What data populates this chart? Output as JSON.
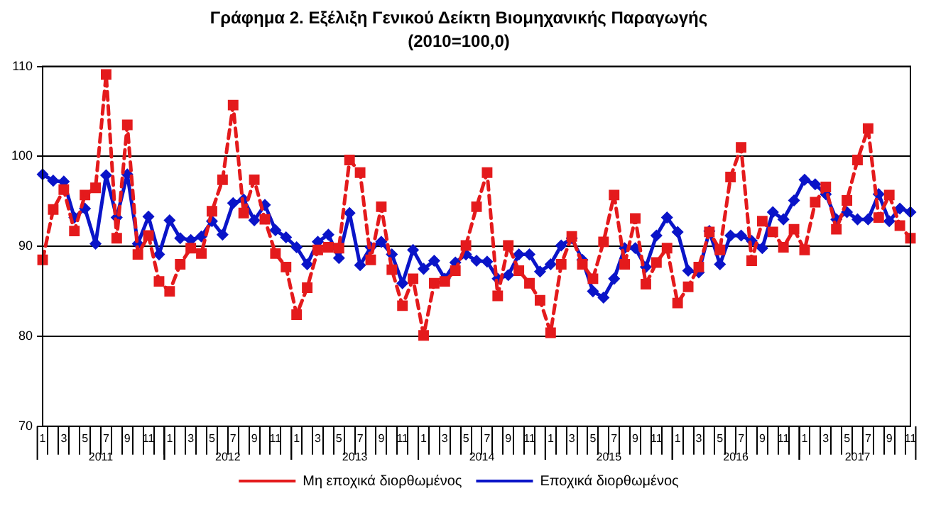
{
  "chart_data": {
    "type": "line",
    "title": "Γράφημα 2. Εξέλιξη Γενικού Δείκτη Βιομηχανικής Παραγωγής",
    "subtitle": "(2010=100,0)",
    "categories": [
      "1",
      null,
      "3",
      null,
      "5",
      null,
      "7",
      null,
      "9",
      null,
      "11",
      null,
      "1",
      null,
      "3",
      null,
      "5",
      null,
      "7",
      null,
      "9",
      null,
      "11",
      null,
      "1",
      null,
      "3",
      null,
      "5",
      null,
      "7",
      null,
      "9",
      null,
      "11",
      null,
      "1",
      null,
      "3",
      null,
      "5",
      null,
      "7",
      null,
      "9",
      null,
      "11",
      null,
      "1",
      null,
      "3",
      null,
      "5",
      null,
      "7",
      null,
      "9",
      null,
      "11",
      null,
      "1",
      null,
      "3",
      null,
      "5",
      null,
      "7",
      null,
      "9",
      null,
      "11",
      null,
      "1",
      null,
      "3",
      null,
      "5",
      null,
      "7",
      null,
      "9",
      null,
      "11"
    ],
    "annotations": [
      "2011",
      "2012",
      "2013",
      "2014",
      "2015",
      "2016",
      "2017"
    ],
    "series": [
      {
        "name": "Μη εποχικά διορθωμένος",
        "color": "#e41a1c",
        "marker": "square",
        "line_style": "dashed",
        "values": [
          88.5,
          94.1,
          96.3,
          91.7,
          95.7,
          96.5,
          109.1,
          90.9,
          103.5,
          89.1,
          91.2,
          86.1,
          85.0,
          88.0,
          89.8,
          89.2,
          93.9,
          97.4,
          105.7,
          93.7,
          97.4,
          93.0,
          89.2,
          87.7,
          82.4,
          85.4,
          89.6,
          89.9,
          89.8,
          99.6,
          98.2,
          88.5,
          94.4,
          87.4,
          83.4,
          86.4,
          80.1,
          85.9,
          86.1,
          87.3,
          90.1,
          94.4,
          98.2,
          84.5,
          90.1,
          87.3,
          85.9,
          84.0,
          80.4,
          88.0,
          91.1,
          88.0,
          86.4,
          90.5,
          95.7,
          88.0,
          93.1,
          85.8,
          88.2,
          89.8,
          83.7,
          85.5,
          87.7,
          91.6,
          89.6,
          97.7,
          101.0,
          88.4,
          92.8,
          91.6,
          89.9,
          91.9,
          89.6,
          94.9,
          96.6,
          91.9,
          95.1,
          99.6,
          103.1,
          93.2,
          95.7,
          92.3,
          90.9
        ]
      },
      {
        "name": "Εποχικά διορθωμένος",
        "color": "#0a14c8",
        "marker": "diamond",
        "line_style": "solid",
        "values": [
          98.0,
          97.3,
          97.2,
          93.2,
          94.2,
          90.3,
          97.9,
          93.2,
          98.0,
          90.3,
          93.3,
          89.1,
          92.9,
          90.9,
          90.7,
          91.1,
          92.8,
          91.3,
          94.8,
          95.2,
          92.9,
          94.6,
          91.8,
          91.0,
          89.9,
          88.0,
          90.5,
          91.3,
          88.7,
          93.7,
          87.9,
          89.9,
          90.5,
          89.1,
          85.9,
          89.6,
          87.5,
          88.4,
          86.4,
          88.2,
          89.1,
          88.4,
          88.3,
          86.4,
          86.8,
          89.1,
          89.1,
          87.2,
          88.0,
          90.1,
          90.9,
          88.5,
          85.0,
          84.3,
          86.4,
          89.8,
          89.8,
          87.7,
          91.2,
          93.2,
          91.6,
          87.3,
          87.1,
          91.7,
          88.0,
          91.2,
          91.2,
          90.6,
          89.8,
          93.8,
          93.0,
          95.1,
          97.4,
          96.9,
          95.8,
          93.0,
          93.8,
          93.0,
          93.0,
          95.8,
          92.8,
          94.2,
          93.8
        ]
      }
    ],
    "ylim": [
      70,
      110
    ],
    "yticks": [
      70,
      80,
      90,
      100,
      110
    ],
    "grid": "y",
    "legend": "bottom"
  }
}
